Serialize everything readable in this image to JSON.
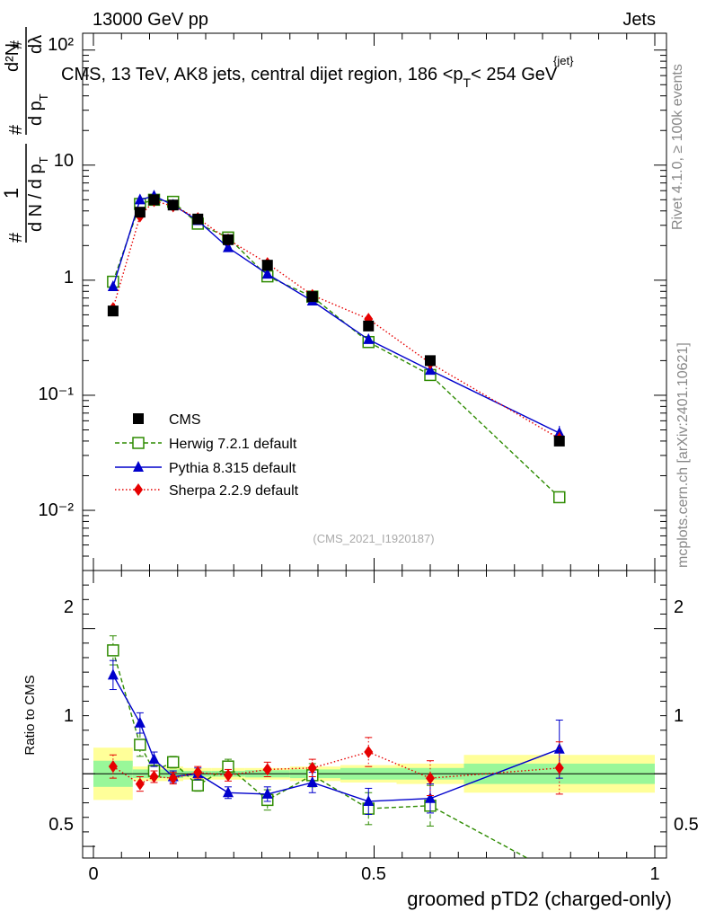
{
  "header": {
    "left": "13000 GeV pp",
    "right": "Jets",
    "plot_title": "CMS, 13 TeV, AK8 jets, central dijet region, 186 <",
    "plot_title_var": "p",
    "plot_title_sub": "T",
    "plot_title_sup": "{jet}",
    "plot_title_tail": "< 254 GeV",
    "analysis_id": "(CMS_2021_I1920187)"
  },
  "side_labels": {
    "rivet": "Rivet 4.1.0, ≥ 100k events",
    "mcplots": "mcplots.cern.ch [arXiv:2401.10621]"
  },
  "axes": {
    "xlabel": "groomed pTD2 (charged-only)",
    "ylabel_ratio": "Ratio to CMS",
    "ylabel_main": {
      "hash": "#",
      "one": "1",
      "dn_d": "d N / d p",
      "sub_T": "T",
      "d2N": "d²N",
      "d_pT": "d p",
      "d_lambda": "dλ"
    },
    "main_ytick_labels": [
      "10⁻²",
      "10⁻¹",
      "1",
      "10",
      "10²"
    ],
    "ratio_ytick_labels": [
      "0.5",
      "1",
      "2"
    ],
    "xtick_labels": [
      "0",
      "0.5",
      "1"
    ]
  },
  "legend": {
    "cms": "CMS",
    "herwig": "Herwig 7.2.1 default",
    "pythia": "Pythia 8.315 default",
    "sherpa": "Sherpa 2.2.9 default"
  },
  "colors": {
    "cms": "#000000",
    "herwig": "#2e8b00",
    "pythia": "#0000cc",
    "sherpa": "#e60000",
    "band_inner": "#99f799",
    "band_outer": "#ffff99"
  },
  "chart_data": {
    "type": "scatter",
    "title": "CMS, 13 TeV, AK8 jets, central dijet region, 186 < pT{jet} < 254 GeV",
    "xlabel": "groomed pTD2 (charged-only)",
    "ylabel": "1/(dN/dpT) d2N/(dpT dlambda)",
    "xlim": [
      0,
      1
    ],
    "ylim_main": [
      0.003,
      140
    ],
    "ylim_ratio": [
      0.42,
      2.4
    ],
    "yscale": "log",
    "bins": [
      [
        0.0,
        0.07
      ],
      [
        0.07,
        0.1
      ],
      [
        0.1,
        0.12
      ],
      [
        0.12,
        0.16
      ],
      [
        0.16,
        0.21
      ],
      [
        0.21,
        0.27
      ],
      [
        0.27,
        0.35
      ],
      [
        0.35,
        0.44
      ],
      [
        0.44,
        0.54
      ],
      [
        0.54,
        0.66
      ],
      [
        0.66,
        1.0
      ]
    ],
    "x": [
      0.035,
      0.083,
      0.108,
      0.142,
      0.186,
      0.24,
      0.31,
      0.39,
      0.49,
      0.6,
      0.83
    ],
    "series": [
      {
        "name": "CMS",
        "values": [
          0.54,
          3.9,
          5.0,
          4.5,
          3.4,
          2.25,
          1.35,
          0.72,
          0.4,
          0.2,
          0.04
        ]
      },
      {
        "name": "Herwig 7.2.1 default",
        "values": [
          0.97,
          4.6,
          5.0,
          4.8,
          3.1,
          2.35,
          1.08,
          0.72,
          0.29,
          0.15,
          0.013
        ],
        "ratio": [
          1.85,
          1.2,
          1.02,
          1.08,
          0.92,
          1.05,
          0.82,
          0.99,
          0.76,
          0.78,
          0.3
        ],
        "ratio_err": [
          0.1,
          0.08,
          0.04,
          0.04,
          0.04,
          0.05,
          0.07,
          0.08,
          0.11,
          0.14,
          0.1
        ]
      },
      {
        "name": "Pythia 8.315 default",
        "values": [
          0.88,
          5.0,
          5.4,
          4.5,
          3.3,
          1.92,
          1.13,
          0.66,
          0.305,
          0.165,
          0.047
        ],
        "ratio": [
          1.68,
          1.35,
          1.1,
          0.98,
          1.0,
          0.87,
          0.86,
          0.94,
          0.81,
          0.83,
          1.17
        ],
        "ratio_err": [
          0.1,
          0.07,
          0.05,
          0.04,
          0.04,
          0.04,
          0.05,
          0.07,
          0.09,
          0.1,
          0.2
        ]
      },
      {
        "name": "Sherpa 2.2.9 default",
        "values": [
          0.57,
          3.6,
          4.9,
          4.4,
          3.45,
          2.25,
          1.4,
          0.74,
          0.46,
          0.19,
          0.042
        ],
        "ratio": [
          1.05,
          0.93,
          0.98,
          0.97,
          1.01,
          0.99,
          1.03,
          1.04,
          1.15,
          0.97,
          1.04
        ],
        "ratio_err": [
          0.08,
          0.05,
          0.04,
          0.04,
          0.04,
          0.04,
          0.05,
          0.06,
          0.1,
          0.12,
          0.18
        ]
      }
    ],
    "cms_band_inner": [
      0.09,
      0.03,
      0.03,
      0.03,
      0.02,
      0.02,
      0.025,
      0.03,
      0.04,
      0.04,
      0.07
    ],
    "cms_band_outer": [
      0.18,
      0.05,
      0.05,
      0.05,
      0.04,
      0.04,
      0.04,
      0.05,
      0.06,
      0.07,
      0.13
    ]
  }
}
